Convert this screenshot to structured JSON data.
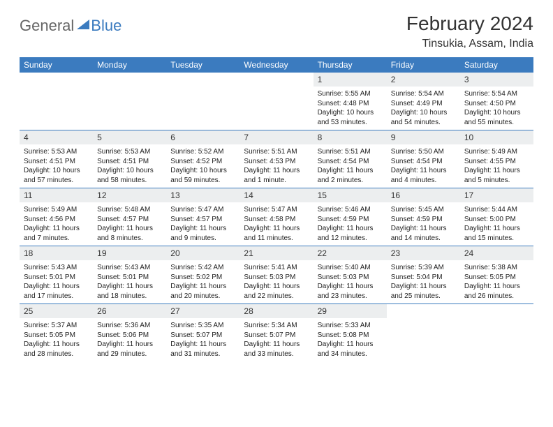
{
  "logo": {
    "general": "General",
    "blue": "Blue"
  },
  "title": "February 2024",
  "location": "Tinsukia, Assam, India",
  "colors": {
    "header_bg": "#3b7bbf",
    "header_text": "#ffffff",
    "daynum_bg": "#eceeef",
    "border": "#3b7bbf",
    "text": "#222222",
    "logo_gray": "#666666",
    "logo_blue": "#3b7bbf"
  },
  "weekdays": [
    "Sunday",
    "Monday",
    "Tuesday",
    "Wednesday",
    "Thursday",
    "Friday",
    "Saturday"
  ],
  "weeks": [
    [
      null,
      null,
      null,
      null,
      {
        "d": "1",
        "sr": "5:55 AM",
        "ss": "4:48 PM",
        "dl": "10 hours and 53 minutes."
      },
      {
        "d": "2",
        "sr": "5:54 AM",
        "ss": "4:49 PM",
        "dl": "10 hours and 54 minutes."
      },
      {
        "d": "3",
        "sr": "5:54 AM",
        "ss": "4:50 PM",
        "dl": "10 hours and 55 minutes."
      }
    ],
    [
      {
        "d": "4",
        "sr": "5:53 AM",
        "ss": "4:51 PM",
        "dl": "10 hours and 57 minutes."
      },
      {
        "d": "5",
        "sr": "5:53 AM",
        "ss": "4:51 PM",
        "dl": "10 hours and 58 minutes."
      },
      {
        "d": "6",
        "sr": "5:52 AM",
        "ss": "4:52 PM",
        "dl": "10 hours and 59 minutes."
      },
      {
        "d": "7",
        "sr": "5:51 AM",
        "ss": "4:53 PM",
        "dl": "11 hours and 1 minute."
      },
      {
        "d": "8",
        "sr": "5:51 AM",
        "ss": "4:54 PM",
        "dl": "11 hours and 2 minutes."
      },
      {
        "d": "9",
        "sr": "5:50 AM",
        "ss": "4:54 PM",
        "dl": "11 hours and 4 minutes."
      },
      {
        "d": "10",
        "sr": "5:49 AM",
        "ss": "4:55 PM",
        "dl": "11 hours and 5 minutes."
      }
    ],
    [
      {
        "d": "11",
        "sr": "5:49 AM",
        "ss": "4:56 PM",
        "dl": "11 hours and 7 minutes."
      },
      {
        "d": "12",
        "sr": "5:48 AM",
        "ss": "4:57 PM",
        "dl": "11 hours and 8 minutes."
      },
      {
        "d": "13",
        "sr": "5:47 AM",
        "ss": "4:57 PM",
        "dl": "11 hours and 9 minutes."
      },
      {
        "d": "14",
        "sr": "5:47 AM",
        "ss": "4:58 PM",
        "dl": "11 hours and 11 minutes."
      },
      {
        "d": "15",
        "sr": "5:46 AM",
        "ss": "4:59 PM",
        "dl": "11 hours and 12 minutes."
      },
      {
        "d": "16",
        "sr": "5:45 AM",
        "ss": "4:59 PM",
        "dl": "11 hours and 14 minutes."
      },
      {
        "d": "17",
        "sr": "5:44 AM",
        "ss": "5:00 PM",
        "dl": "11 hours and 15 minutes."
      }
    ],
    [
      {
        "d": "18",
        "sr": "5:43 AM",
        "ss": "5:01 PM",
        "dl": "11 hours and 17 minutes."
      },
      {
        "d": "19",
        "sr": "5:43 AM",
        "ss": "5:01 PM",
        "dl": "11 hours and 18 minutes."
      },
      {
        "d": "20",
        "sr": "5:42 AM",
        "ss": "5:02 PM",
        "dl": "11 hours and 20 minutes."
      },
      {
        "d": "21",
        "sr": "5:41 AM",
        "ss": "5:03 PM",
        "dl": "11 hours and 22 minutes."
      },
      {
        "d": "22",
        "sr": "5:40 AM",
        "ss": "5:03 PM",
        "dl": "11 hours and 23 minutes."
      },
      {
        "d": "23",
        "sr": "5:39 AM",
        "ss": "5:04 PM",
        "dl": "11 hours and 25 minutes."
      },
      {
        "d": "24",
        "sr": "5:38 AM",
        "ss": "5:05 PM",
        "dl": "11 hours and 26 minutes."
      }
    ],
    [
      {
        "d": "25",
        "sr": "5:37 AM",
        "ss": "5:05 PM",
        "dl": "11 hours and 28 minutes."
      },
      {
        "d": "26",
        "sr": "5:36 AM",
        "ss": "5:06 PM",
        "dl": "11 hours and 29 minutes."
      },
      {
        "d": "27",
        "sr": "5:35 AM",
        "ss": "5:07 PM",
        "dl": "11 hours and 31 minutes."
      },
      {
        "d": "28",
        "sr": "5:34 AM",
        "ss": "5:07 PM",
        "dl": "11 hours and 33 minutes."
      },
      {
        "d": "29",
        "sr": "5:33 AM",
        "ss": "5:08 PM",
        "dl": "11 hours and 34 minutes."
      },
      null,
      null
    ]
  ],
  "labels": {
    "sunrise": "Sunrise:",
    "sunset": "Sunset:",
    "daylight": "Daylight:"
  }
}
